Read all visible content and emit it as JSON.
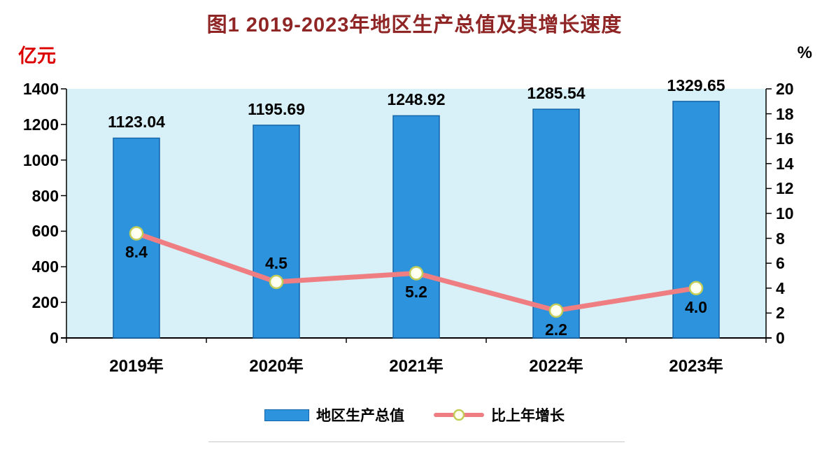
{
  "chart": {
    "title": "图1  2019-2023年地区生产总值及其增长速度"
  },
  "chart_data": {
    "type": "bar+line",
    "title": "图1 2019-2023年地区生产总值及其增长速度",
    "categories": [
      "2019年",
      "2020年",
      "2021年",
      "2022年",
      "2023年"
    ],
    "series": [
      {
        "name": "地区生产总值",
        "type": "bar",
        "axis": "left",
        "unit": "亿元",
        "values": [
          1123.04,
          1195.69,
          1248.92,
          1285.54,
          1329.65
        ],
        "value_labels": [
          "1123.04",
          "1195.69",
          "1248.92",
          "1285.54",
          "1329.65"
        ]
      },
      {
        "name": "比上年增长",
        "type": "line",
        "axis": "right",
        "unit": "%",
        "values": [
          8.4,
          4.5,
          5.2,
          2.2,
          4.0
        ],
        "value_labels": [
          "8.4",
          "4.5",
          "5.2",
          "2.2",
          "4.0"
        ],
        "label_positions": [
          "below",
          "above",
          "below",
          "below",
          "below"
        ]
      }
    ],
    "left_axis": {
      "unit": "亿元",
      "min": 0,
      "max": 1400,
      "step": 200
    },
    "right_axis": {
      "unit": "%",
      "min": 0,
      "max": 20,
      "step": 2
    },
    "legend": [
      "地区生产总值",
      "比上年增长"
    ],
    "legend_position": "bottom",
    "grid": false,
    "colors": {
      "bar_fill": "#2D93DD",
      "bar_border": "#1565A8",
      "line": "#EF7E82",
      "marker_fill": "#FFFFF2",
      "marker_ring": "#C2CE58",
      "plot_bg": "#D8F0F7",
      "axis": "#000000",
      "title": "#8F2525",
      "left_unit": "#DD0000",
      "right_unit": "#000000"
    }
  }
}
